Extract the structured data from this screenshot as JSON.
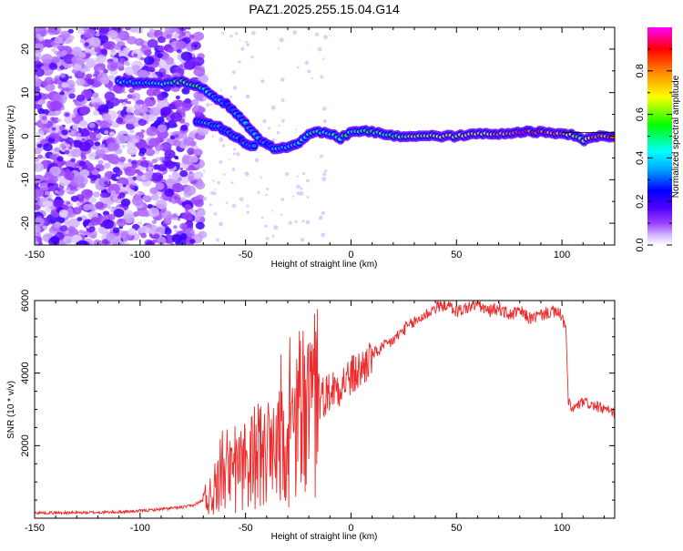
{
  "figure": {
    "title": "PAZ1.2025.255.15.04.G14"
  },
  "colorbar": {
    "label": "Normalized spectral amplitude",
    "ticks": [
      "0.0",
      "0.2",
      "0.4",
      "0.6",
      "0.8"
    ],
    "tick_values": [
      0.0,
      0.2,
      0.4,
      0.6,
      0.8
    ],
    "range": [
      0,
      1
    ],
    "colors": [
      "#ffffff",
      "#c9a6ff",
      "#7b00ff",
      "#0000ff",
      "#00ffff",
      "#00ff00",
      "#ffff00",
      "#ff8000",
      "#ff0000",
      "#ff00ff"
    ]
  },
  "chart_data": [
    {
      "type": "heatmap",
      "title": "PAZ1.2025.255.15.04.G14",
      "xlabel": "Height of straight line (km)",
      "ylabel": "Frequency (Hz)",
      "xlim": [
        -150,
        125
      ],
      "ylim": [
        -25,
        25
      ],
      "xticks": [
        -150,
        -100,
        -50,
        0,
        50,
        100
      ],
      "yticks": [
        -20,
        -10,
        0,
        10,
        20
      ],
      "ridge": {
        "description": "main spectral ridge",
        "x": [
          -110,
          -100,
          -90,
          -80,
          -72,
          -65,
          -58,
          -50,
          -45,
          -40,
          -35,
          -30,
          -25,
          -20,
          -15,
          -10,
          -5,
          0,
          5,
          10,
          20,
          30,
          40,
          50,
          60,
          70,
          80,
          90,
          100,
          105,
          110,
          115,
          125
        ],
        "y": [
          12.5,
          12.2,
          12,
          12.5,
          11.5,
          9,
          7,
          3,
          0,
          -2,
          -3,
          -2.5,
          -1.5,
          0.5,
          1,
          0.5,
          -0.5,
          0.8,
          1.2,
          1,
          0,
          0,
          0,
          0,
          0.5,
          0.5,
          1,
          1,
          0.5,
          0.5,
          -1,
          0,
          0
        ],
        "amplitude": [
          0.4,
          0.35,
          0.45,
          0.6,
          0.5,
          0.35,
          0.3,
          0.35,
          0.4,
          0.3,
          0.4,
          0.35,
          0.4,
          0.45,
          0.5,
          0.45,
          0.5,
          0.55,
          0.5,
          0.55,
          0.6,
          0.65,
          0.7,
          0.7,
          0.7,
          0.8,
          0.9,
          0.85,
          0.8,
          0.7,
          0.6,
          0.8,
          0.85
        ]
      },
      "branch": {
        "description": "secondary lower branch",
        "x": [
          -73,
          -68,
          -62,
          -56,
          -52,
          -48,
          -45
        ],
        "y": [
          3.5,
          3,
          2,
          0,
          -1,
          -2,
          -2.5
        ],
        "amplitude": [
          0.3,
          0.4,
          0.3,
          0.35,
          0.3,
          0.35,
          0.3
        ]
      }
    },
    {
      "type": "line",
      "xlabel": "Height of straight line (km)",
      "ylabel": "SNR (10 * v/v)",
      "xlim": [
        -150,
        125
      ],
      "ylim": [
        0,
        6000
      ],
      "xticks": [
        -150,
        -100,
        -50,
        0,
        50,
        100
      ],
      "yticks": [
        2000,
        4000,
        6000
      ],
      "series": [
        {
          "name": "SNR",
          "color": "#ee2a2a",
          "x": [
            -150,
            -140,
            -130,
            -120,
            -110,
            -100,
            -90,
            -80,
            -75,
            -70,
            -65,
            -60,
            -55,
            -50,
            -45,
            -40,
            -35,
            -30,
            -25,
            -20,
            -15,
            -10,
            -5,
            0,
            5,
            10,
            15,
            20,
            25,
            30,
            35,
            40,
            45,
            50,
            55,
            60,
            65,
            70,
            75,
            80,
            85,
            90,
            95,
            100,
            102,
            103,
            105,
            110,
            115,
            120,
            125
          ],
          "y": [
            150,
            150,
            150,
            160,
            170,
            200,
            250,
            300,
            350,
            500,
            700,
            1000,
            1200,
            1400,
            1700,
            1800,
            1800,
            2000,
            2500,
            3000,
            3300,
            3500,
            3700,
            3900,
            4100,
            4500,
            4700,
            4900,
            5200,
            5400,
            5600,
            5800,
            5900,
            5700,
            5800,
            5900,
            5700,
            5800,
            5600,
            5700,
            5500,
            5600,
            5700,
            5600,
            5100,
            3200,
            3000,
            3200,
            3100,
            3000,
            2900
          ]
        }
      ]
    }
  ]
}
